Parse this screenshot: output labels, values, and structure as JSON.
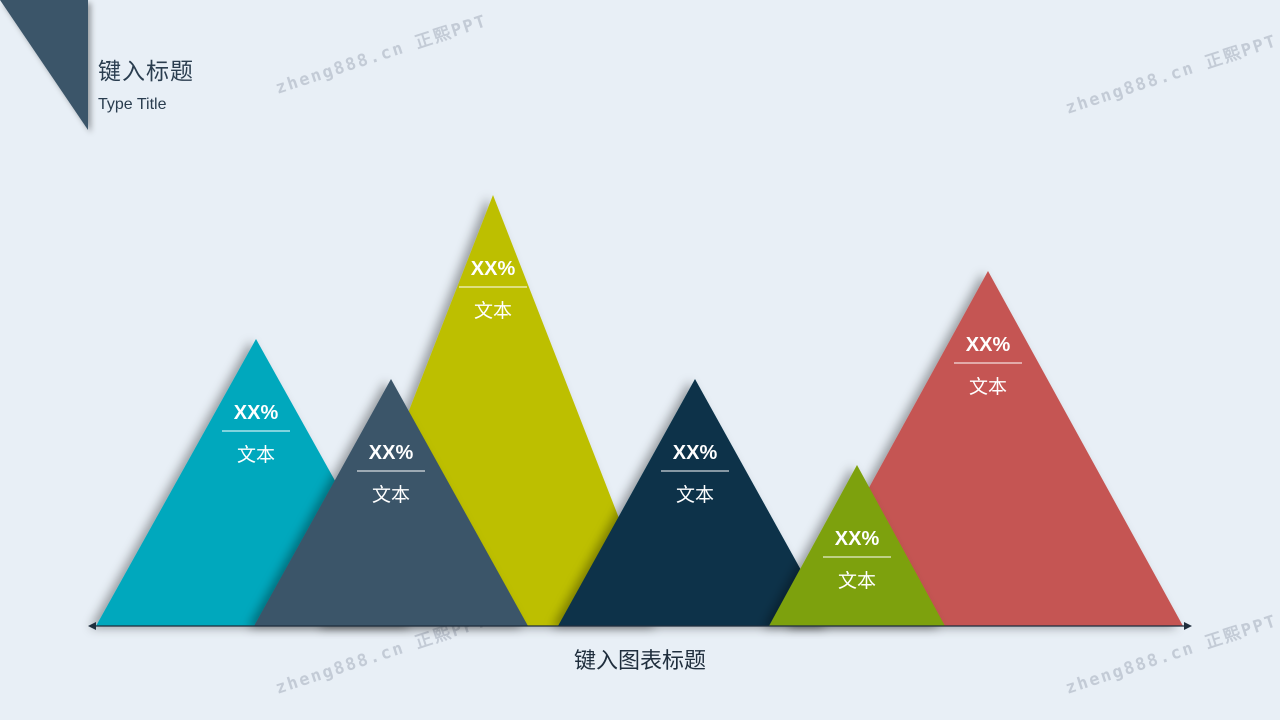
{
  "header": {
    "title": "键入标题",
    "subtitle": "Type Title"
  },
  "watermark": "zheng888.cn 正熙PPT",
  "colors": {
    "background": "#e8eff6",
    "corner": "#3b5569",
    "axis": "#1f2e3d"
  },
  "chart_data": {
    "type": "bar",
    "style": "triangle-peaks",
    "title": "键入图表标题",
    "series": [
      {
        "value_label": "XX%",
        "text": "文本",
        "height": 287,
        "color": "#04a8bd"
      },
      {
        "value_label": "XX%",
        "text": "文本",
        "height": 247,
        "color": "#3b5569"
      },
      {
        "value_label": "XX%",
        "text": "文本",
        "height": 431,
        "color": "#bdbf00"
      },
      {
        "value_label": "XX%",
        "text": "文本",
        "height": 247,
        "color": "#07334a"
      },
      {
        "value_label": "XX%",
        "text": "文本",
        "height": 161,
        "color": "#7da10b"
      },
      {
        "value_label": "XX%",
        "text": "文本",
        "height": 355,
        "color": "#c55553"
      }
    ],
    "ylim": [
      0,
      431
    ],
    "grid": false,
    "legend": "none"
  }
}
